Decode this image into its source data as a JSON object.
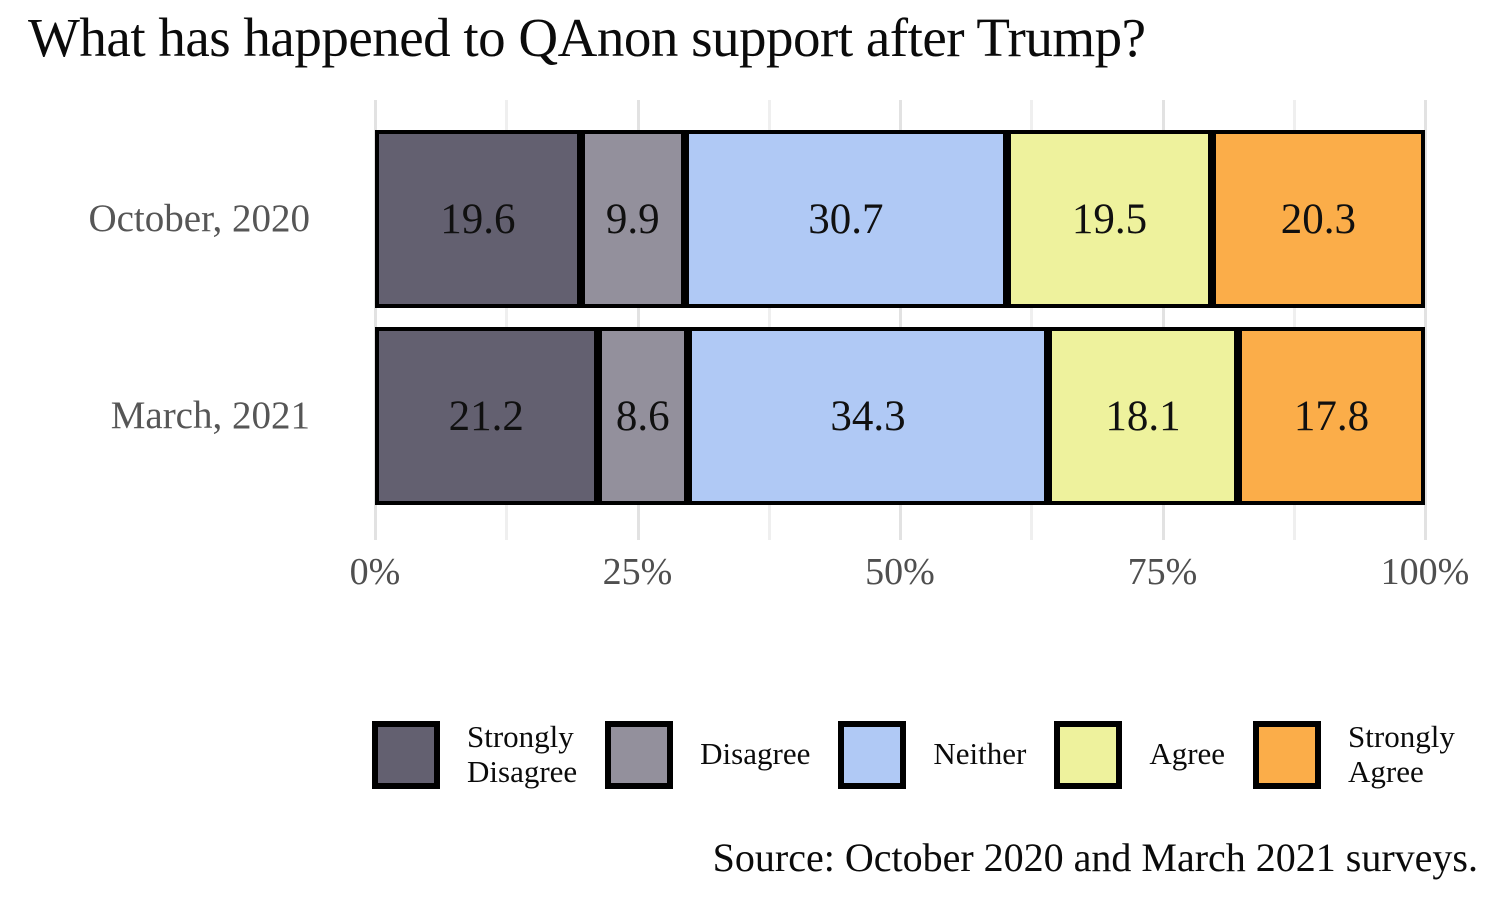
{
  "title": "What has happened to QAnon support after Trump?",
  "source_note": "Source: October 2020 and March 2021 surveys.",
  "colors": {
    "background": "#ffffff",
    "bar_border": "#000000",
    "gridline_major": "#e2e2e2",
    "gridline_minor": "#efefef",
    "axis_text": "#4f4f4f",
    "category_text": "#565656",
    "value_text": "#101010"
  },
  "chart_data": {
    "type": "bar",
    "subtype": "horizontal_stacked",
    "orientation": "horizontal",
    "unit": "percent",
    "categories": [
      "October, 2020",
      "March, 2021"
    ],
    "series": [
      {
        "name": "Strongly Disagree",
        "legend_label": "Strongly\nDisagree",
        "color": "#636070",
        "values": [
          19.6,
          21.2
        ]
      },
      {
        "name": "Disagree",
        "legend_label": "Disagree",
        "color": "#93909c",
        "values": [
          9.9,
          8.6
        ]
      },
      {
        "name": "Neither",
        "legend_label": "Neither",
        "color": "#b0c9f5",
        "values": [
          30.7,
          34.3
        ]
      },
      {
        "name": "Agree",
        "legend_label": "Agree",
        "color": "#eef29d",
        "values": [
          19.5,
          18.1
        ]
      },
      {
        "name": "Strongly Agree",
        "legend_label": "Strongly\nAgree",
        "color": "#fbad49",
        "values": [
          20.3,
          17.8
        ]
      }
    ],
    "xlabel": "",
    "ylabel": "",
    "xlim": [
      0,
      100
    ],
    "x_ticks": [
      {
        "value": 0,
        "label": "0%"
      },
      {
        "value": 25,
        "label": "25%"
      },
      {
        "value": 50,
        "label": "50%"
      },
      {
        "value": 75,
        "label": "75%"
      },
      {
        "value": 100,
        "label": "100%"
      }
    ],
    "x_minor_ticks": [
      12.5,
      37.5,
      62.5,
      87.5
    ],
    "grid": true,
    "legend_position": "bottom"
  }
}
